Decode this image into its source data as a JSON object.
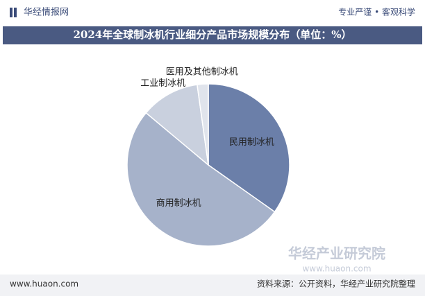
{
  "header": {
    "brand": "华经情报网",
    "slogan": "专业严谨 • 客观科学"
  },
  "chart_data": {
    "type": "pie",
    "title": "2024年全球制冰机行业细分产品市场规模分布（单位：%）",
    "categories": [
      "民用制冰机",
      "商用制冰机",
      "工业制冰机",
      "医用及其他制冰机"
    ],
    "values": [
      34.8,
      51.3,
      11.7,
      2.2
    ],
    "colors": [
      "#6b7fa9",
      "#a6b2ca",
      "#c9d0de",
      "#e0e4ec"
    ]
  },
  "watermark": {
    "name": "华经产业研究院",
    "url": "www.huaon.com"
  },
  "footer": {
    "url": "www.huaon.com",
    "source": "资料来源：公开资料，华经产业研究院整理"
  }
}
